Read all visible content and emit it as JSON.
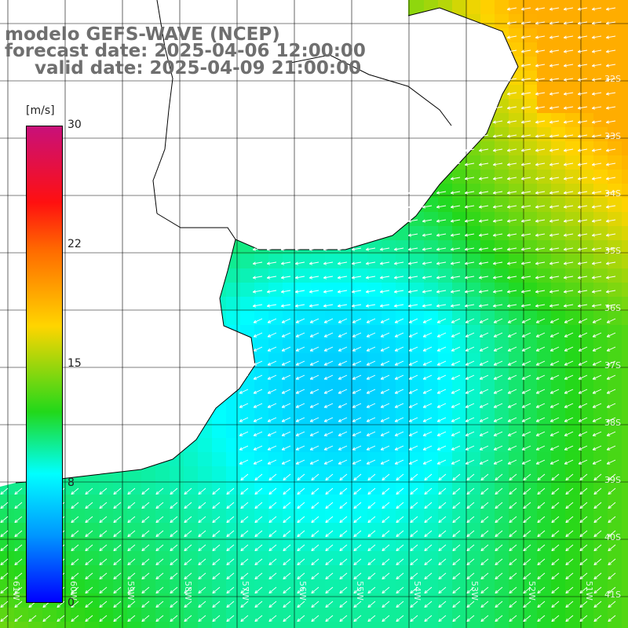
{
  "title": {
    "line1": "modelo GEFS-WAVE (NCEP)",
    "line2": "forecast date: 2025-04-06 12:00:00",
    "line3": "valid date: 2025-04-09 21:00:00"
  },
  "colorbar": {
    "unit": "[m/s]",
    "min": 0,
    "max": 30,
    "ticks": [
      {
        "label": "30",
        "value": 30
      },
      {
        "label": "22",
        "value": 22
      },
      {
        "label": "15",
        "value": 15
      },
      {
        "label": "8",
        "value": 8
      },
      {
        "label": "0",
        "value": 0
      }
    ],
    "colors": [
      "#c8107a",
      "#ff1010",
      "#ff6a00",
      "#ffd500",
      "#22d81a",
      "#00ffff",
      "#0096ff",
      "#0000ff"
    ]
  },
  "map": {
    "lon_labels": [
      "61W",
      "60W",
      "59W",
      "58W",
      "57W",
      "56W",
      "55W",
      "54W",
      "53W",
      "52W",
      "51W"
    ],
    "lat_labels": [
      "32S",
      "33S",
      "34S",
      "35S",
      "36S",
      "37S",
      "38S",
      "39S",
      "40S",
      "41S"
    ],
    "land_color": "#ffffff",
    "coast_color": "#000000",
    "grid_color": "#000000",
    "arrow_color": "#ffffff",
    "wind_direction": "from east-northeast"
  }
}
